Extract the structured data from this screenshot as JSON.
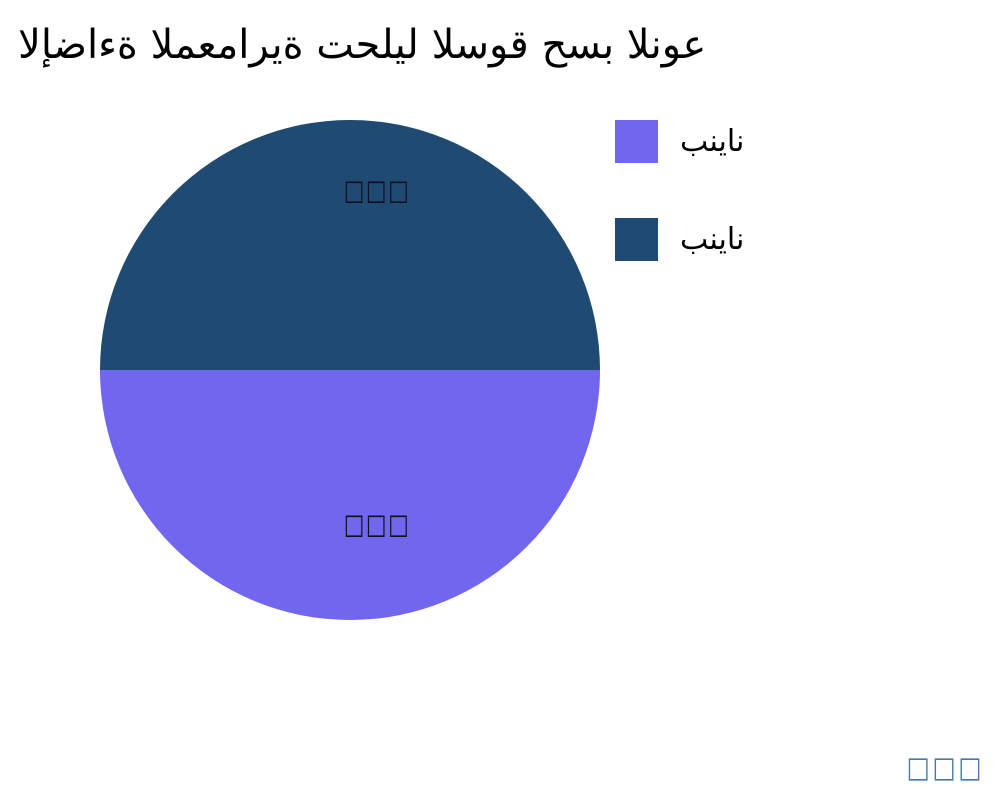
{
  "title": "الإضاءة المعمارية تحليل السوق حسب النوع",
  "pie": {
    "slice_labels": {
      "top": "□□□",
      "bottom": "□□□"
    }
  },
  "legend": {
    "items": [
      {
        "label": "بنيان",
        "color": "#7166EE"
      },
      {
        "label": "بنيان",
        "color": "#1F4A72"
      }
    ]
  },
  "watermark": {
    "text": "□□□",
    "color": "#4878A8"
  },
  "colors": {
    "background": "#FFFFFF",
    "navy_slice": "#1F4A72",
    "purple_slice": "#7166EE",
    "slice_label_text": "#101020",
    "title_text": "#000000",
    "watermark_text": "#4878A8"
  },
  "chart_data": {
    "type": "pie",
    "title": "الإضاءة المعمارية تحليل السوق حسب النوع",
    "series": [
      {
        "name": "بنيان",
        "value": 50,
        "color": "#1F4A72",
        "position": "top-half",
        "slice_label_shown": "□□□"
      },
      {
        "name": "بنيان",
        "value": 50,
        "color": "#7166EE",
        "position": "bottom-half",
        "slice_label_shown": "□□□"
      }
    ],
    "values_unit": "percent (estimated from equal half-circle geometry; on-slice labels render as missing-glyph boxes)",
    "legend_position": "top-right",
    "legend_entries": [
      "بنيان",
      "بنيان"
    ]
  }
}
